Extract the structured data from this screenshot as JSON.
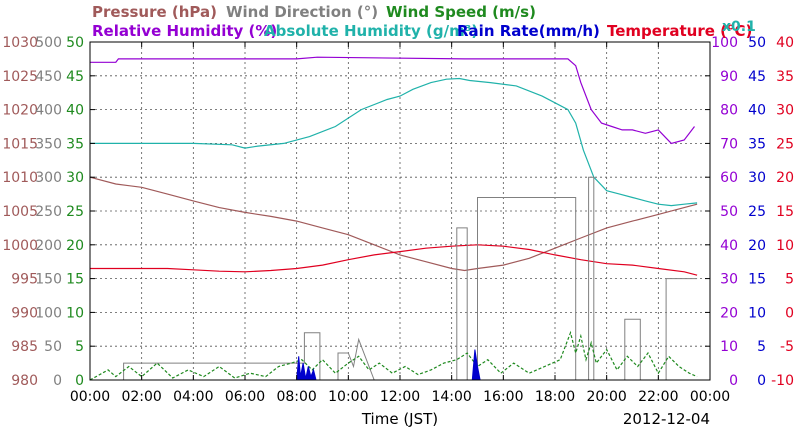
{
  "chart_data": {
    "type": "line",
    "header": {
      "row1": [
        {
          "text": "Pressure (hPa)",
          "color": "#a05a5a"
        },
        {
          "text": "Wind Direction (°)",
          "color": "#808080"
        },
        {
          "text": "Wind Speed (m/s)",
          "color": "#1f8a1f"
        }
      ],
      "row2": [
        {
          "text": "Relative Humidity (%)",
          "color": "#9400d3"
        },
        {
          "text": "Absolute Humidity (g/m³)",
          "color": "#20b2aa"
        },
        {
          "text": "Rain Rate(mm/h)",
          "color": "#0000cd"
        },
        {
          "text": "Temperature (°C)",
          "color": "#e00020"
        }
      ],
      "rain_scale_note": {
        "text": "x0.1",
        "color": "#20b2aa"
      }
    },
    "xlabel": "Time (JST)",
    "date_label": "2012-12-04",
    "x_range": [
      0,
      24
    ],
    "x_ticks": [
      "00:00",
      "02:00",
      "04:00",
      "06:00",
      "08:00",
      "10:00",
      "12:00",
      "14:00",
      "16:00",
      "18:00",
      "20:00",
      "22:00",
      "00:00"
    ],
    "grid": true,
    "left_axes": [
      {
        "name": "pressure",
        "color": "#a05a5a",
        "ticks": [
          "980",
          "985",
          "990",
          "995",
          "1000",
          "1005",
          "1010",
          "1015",
          "1020",
          "1025",
          "1030"
        ]
      },
      {
        "name": "wind_direction",
        "color": "#808080",
        "ticks": [
          "0",
          "50",
          "100",
          "150",
          "200",
          "250",
          "300",
          "350",
          "400",
          "450",
          "500"
        ]
      },
      {
        "name": "wind_speed",
        "color": "#1f8a1f",
        "ticks": [
          "0",
          "5",
          "10",
          "15",
          "20",
          "25",
          "30",
          "35",
          "40",
          "45",
          "50"
        ]
      }
    ],
    "right_axes": [
      {
        "name": "relative_humidity",
        "color": "#9400d3",
        "ticks": [
          "0",
          "10",
          "20",
          "30",
          "40",
          "50",
          "60",
          "70",
          "80",
          "90",
          "100"
        ]
      },
      {
        "name": "rain_rate",
        "color": "#0000cd",
        "ticks": [
          "0",
          "5",
          "10",
          "15",
          "20",
          "25",
          "30",
          "35",
          "40",
          "45",
          "50"
        ]
      },
      {
        "name": "temperature",
        "color": "#e00020",
        "ticks": [
          "-10",
          "-5",
          "0",
          "5",
          "10",
          "15",
          "20",
          "25",
          "30",
          "35",
          "40"
        ]
      }
    ],
    "series": [
      {
        "name": "Relative Humidity (%)",
        "axis": "relative_humidity",
        "color": "#9400d3",
        "x": [
          0,
          1.0,
          1.1,
          8.0,
          8.8,
          14.5,
          18.5,
          18.8,
          19.0,
          19.4,
          19.8,
          20.2,
          20.6,
          21.0,
          21.5,
          22.0,
          22.5,
          23.0,
          23.4
        ],
        "y": [
          94,
          94,
          95,
          95,
          95.5,
          95,
          95,
          93,
          88,
          80,
          76,
          75,
          74,
          74,
          73,
          74,
          70,
          71,
          75
        ]
      },
      {
        "name": "Absolute Humidity (g/m³)",
        "axis": "wind_speed",
        "color": "#20b2aa",
        "x": [
          0,
          2.0,
          4.0,
          5.5,
          6.0,
          6.5,
          7.5,
          8.5,
          9.5,
          10.5,
          11.5,
          12.0,
          12.5,
          13.2,
          13.8,
          14.3,
          14.7,
          15.5,
          16.5,
          17.5,
          18.0,
          18.5,
          18.8,
          19.1,
          19.5,
          20.0,
          20.5,
          21.0,
          21.5,
          22.0,
          22.5,
          23.0,
          23.5
        ],
        "y": [
          35,
          35,
          35,
          34.8,
          34.3,
          34.6,
          35,
          36,
          37.5,
          40,
          41.5,
          42,
          43,
          44,
          44.5,
          44.6,
          44.3,
          44,
          43.5,
          42,
          41,
          40,
          38,
          34,
          30,
          28,
          27.5,
          27,
          26.5,
          26,
          25.8,
          26,
          26.2
        ]
      },
      {
        "name": "Pressure (hPa)",
        "axis": "pressure",
        "color": "#a05a5a",
        "x": [
          0,
          1.0,
          2.0,
          3.0,
          4.0,
          5.0,
          6.0,
          7.0,
          8.0,
          9.0,
          10.0,
          11.0,
          12.0,
          13.0,
          14.0,
          14.5,
          15.0,
          16.0,
          17.0,
          18.0,
          19.0,
          20.0,
          21.0,
          22.0,
          23.0,
          23.5
        ],
        "y": [
          1010,
          1009,
          1008.5,
          1007.5,
          1006.5,
          1005.5,
          1004.8,
          1004.2,
          1003.5,
          1002.5,
          1001.5,
          1000,
          998.5,
          997.5,
          996.5,
          996.2,
          996.5,
          997,
          998,
          999.5,
          1001,
          1002.5,
          1003.5,
          1004.5,
          1005.5,
          1006
        ]
      },
      {
        "name": "Temperature (°C)",
        "axis": "temperature",
        "color": "#e00020",
        "x": [
          0,
          1.5,
          3.0,
          4.0,
          5.0,
          6.0,
          7.0,
          8.0,
          9.0,
          10.0,
          11.0,
          12.0,
          13.0,
          14.0,
          15.0,
          16.0,
          17.0,
          18.0,
          19.0,
          20.0,
          21.0,
          22.0,
          23.0,
          23.5
        ],
        "y": [
          6.5,
          6.5,
          6.5,
          6.3,
          6.1,
          6.0,
          6.2,
          6.5,
          7.0,
          7.8,
          8.5,
          9.0,
          9.5,
          9.8,
          10.0,
          9.8,
          9.3,
          8.5,
          7.8,
          7.2,
          7.0,
          6.5,
          6.0,
          5.5
        ]
      },
      {
        "name": "Wind Direction (°)",
        "axis": "wind_direction",
        "color": "#808080",
        "x": [
          0,
          1.3,
          1.3,
          7.9,
          7.9,
          8.3,
          8.3,
          8.9,
          8.9,
          9.5,
          9.6,
          9.6,
          10.0,
          10.2,
          10.4,
          11.0,
          11.6,
          14.2,
          14.2,
          14.6,
          14.6,
          15.0,
          15.0,
          18.8,
          18.8,
          19.3,
          19.3,
          19.5,
          19.5,
          20.7,
          20.7,
          21.3,
          21.3,
          22.3,
          22.3,
          23.5
        ],
        "y": [
          0,
          0,
          25,
          25,
          25,
          25,
          70,
          70,
          0,
          0,
          0,
          40,
          40,
          20,
          60,
          0,
          0,
          0,
          225,
          225,
          0,
          0,
          270,
          270,
          0,
          0,
          300,
          300,
          0,
          0,
          90,
          90,
          0,
          0,
          150,
          150
        ]
      },
      {
        "name": "Wind Speed (m/s)",
        "axis": "wind_speed",
        "color": "#1f8a1f",
        "x": [
          0,
          0.7,
          1.0,
          1.5,
          2.0,
          2.6,
          3.2,
          3.8,
          4.4,
          5.0,
          5.6,
          6.2,
          6.8,
          7.3,
          7.8,
          8.2,
          8.6,
          9.0,
          9.5,
          10.0,
          10.4,
          10.8,
          11.2,
          11.7,
          12.2,
          12.7,
          13.2,
          13.7,
          14.2,
          14.6,
          15.0,
          15.4,
          15.9,
          16.4,
          17.0,
          17.6,
          18.2,
          18.6,
          18.8,
          19.0,
          19.2,
          19.4,
          19.6,
          20.0,
          20.4,
          20.8,
          21.2,
          21.6,
          22.0,
          22.4,
          22.8,
          23.2,
          23.5
        ],
        "y": [
          0,
          1.5,
          0.5,
          2.0,
          0.5,
          2.5,
          0.3,
          1.5,
          0.5,
          2.0,
          0.3,
          1.0,
          0.5,
          2.0,
          2.5,
          3.0,
          1.5,
          3.0,
          1.0,
          2.5,
          3.5,
          1.5,
          2.5,
          1.0,
          2.0,
          0.8,
          1.5,
          2.5,
          3.0,
          4.0,
          2.0,
          3.0,
          1.0,
          2.5,
          1.0,
          2.0,
          3.0,
          7.0,
          4.0,
          6.5,
          3.0,
          5.5,
          2.5,
          4.5,
          1.5,
          3.5,
          2.0,
          4.0,
          1.0,
          3.5,
          2.0,
          1.0,
          0.5
        ]
      },
      {
        "name": "Rain Rate(mm/h)",
        "axis": "rain_rate",
        "color": "#0000cd",
        "x": [
          8.0,
          8.08,
          8.15,
          8.25,
          8.35,
          8.45,
          8.55,
          8.65,
          8.75,
          14.8,
          14.9,
          15.0,
          15.1
        ],
        "y": [
          0,
          3.5,
          0.5,
          2.5,
          0.2,
          2.0,
          0.5,
          1.5,
          0,
          0,
          4.5,
          2.0,
          0
        ]
      }
    ]
  }
}
